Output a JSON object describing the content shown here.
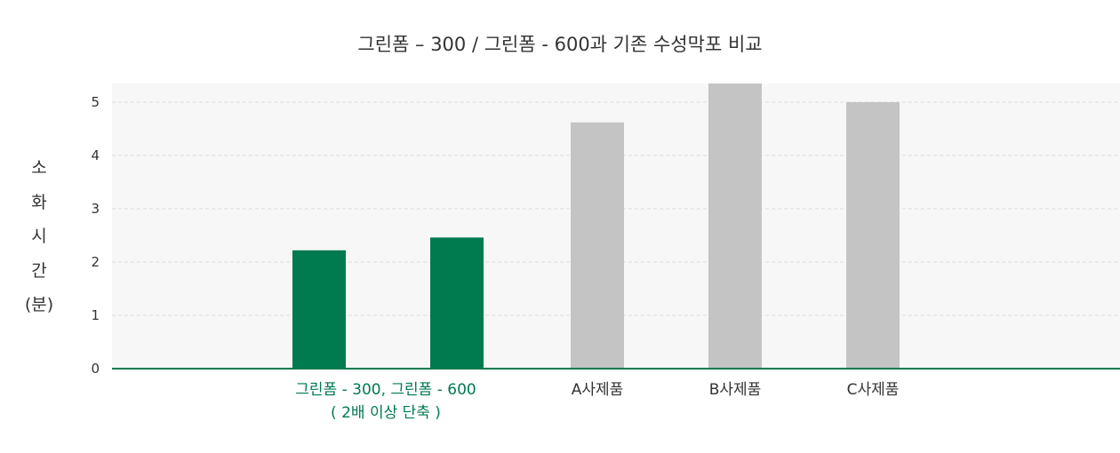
{
  "chart_data": {
    "type": "bar",
    "title": "그린폼 – 300 / 그린폼 -  600과 기존 수성막포 비교",
    "ylabel_chars": [
      "소",
      "화",
      "시",
      "간",
      "(분)"
    ],
    "ylim": [
      0,
      5
    ],
    "yticks": [
      0,
      1,
      2,
      3,
      4,
      5
    ],
    "grid": true,
    "bars": [
      {
        "value": 2.22,
        "color": "#007a4f"
      },
      {
        "value": 2.46,
        "color": "#007a4f"
      },
      {
        "value": 4.62,
        "color": "#c4c4c4"
      },
      {
        "value": 5.35,
        "color": "#c4c4c4"
      },
      {
        "value": 5.0,
        "color": "#c4c4c4"
      }
    ],
    "category_labels": [
      {
        "lines": [
          "그린폼 - 300, 그린폼 - 600",
          "( 2배 이상 단축 )"
        ],
        "color": "#007a4f"
      },
      {
        "lines": [
          "A사제품"
        ],
        "color": "#333333"
      },
      {
        "lines": [
          "B사제품"
        ],
        "color": "#333333"
      },
      {
        "lines": [
          "C사제품"
        ],
        "color": "#333333"
      }
    ]
  },
  "colors": {
    "accent_green": "#007a4f",
    "gray_bar": "#c4c4c4",
    "plot_bg": "#f7f7f7",
    "grid": "#dddddd"
  }
}
